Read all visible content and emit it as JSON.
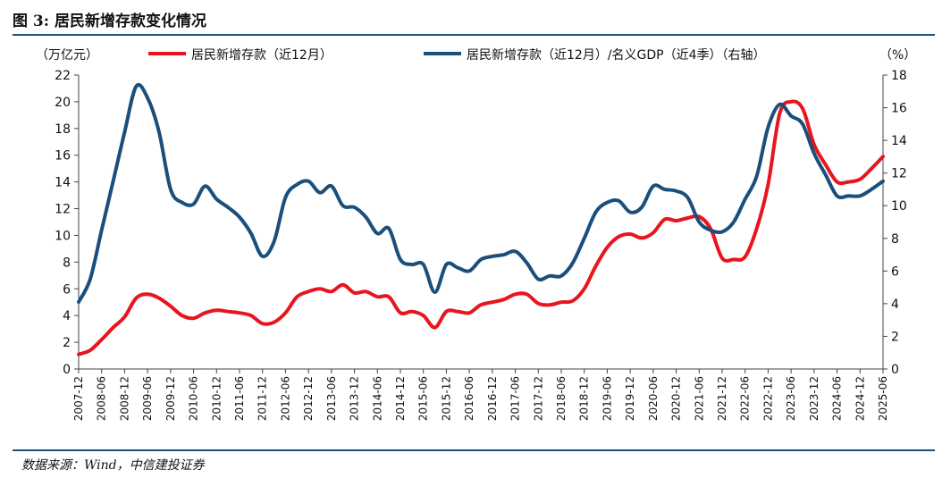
{
  "figure": {
    "title": "图 3: 居民新增存款变化情况",
    "source": "数据来源：Wind，中信建投证券"
  },
  "chart_data": {
    "type": "line",
    "ylabel_left": "（万亿元）",
    "ylabel_right": "（%）",
    "ylim_left": [
      0,
      22
    ],
    "yticks_left": [
      0,
      2,
      4,
      6,
      8,
      10,
      12,
      14,
      16,
      18,
      20,
      22
    ],
    "ylim_right": [
      0,
      18
    ],
    "yticks_right": [
      0,
      2,
      4,
      6,
      8,
      10,
      12,
      14,
      16,
      18
    ],
    "x_range": [
      "2007-12",
      "2025-06"
    ],
    "x_tick_labels": [
      "2007-12",
      "2008-06",
      "2008-12",
      "2009-06",
      "2009-12",
      "2010-06",
      "2010-12",
      "2011-06",
      "2011-12",
      "2012-06",
      "2012-12",
      "2013-06",
      "2013-12",
      "2014-06",
      "2014-12",
      "2015-06",
      "2015-12",
      "2016-06",
      "2016-12",
      "2017-06",
      "2017-12",
      "2018-06",
      "2018-12",
      "2019-06",
      "2019-12",
      "2020-06",
      "2020-12",
      "2021-06",
      "2021-12",
      "2022-06",
      "2022-12",
      "2023-06",
      "2023-12",
      "2024-06",
      "2024-12",
      "2025-06"
    ],
    "legend_position": "top",
    "grid": false,
    "colors": {
      "series1": "#e8141e",
      "series2": "#1b4f7b"
    },
    "series": [
      {
        "name": "居民新增存款（近12月）",
        "axis": "left",
        "points": [
          [
            "2007-12",
            1.1
          ],
          [
            "2008-03",
            1.4
          ],
          [
            "2008-06",
            2.2
          ],
          [
            "2008-09",
            3.1
          ],
          [
            "2008-12",
            3.9
          ],
          [
            "2009-03",
            5.3
          ],
          [
            "2009-06",
            5.6
          ],
          [
            "2009-09",
            5.3
          ],
          [
            "2009-12",
            4.7
          ],
          [
            "2010-03",
            4.0
          ],
          [
            "2010-06",
            3.8
          ],
          [
            "2010-09",
            4.2
          ],
          [
            "2010-12",
            4.4
          ],
          [
            "2011-03",
            4.3
          ],
          [
            "2011-06",
            4.2
          ],
          [
            "2011-09",
            4.0
          ],
          [
            "2011-12",
            3.4
          ],
          [
            "2012-03",
            3.5
          ],
          [
            "2012-06",
            4.2
          ],
          [
            "2012-09",
            5.4
          ],
          [
            "2012-12",
            5.8
          ],
          [
            "2013-03",
            6.0
          ],
          [
            "2013-06",
            5.8
          ],
          [
            "2013-09",
            6.3
          ],
          [
            "2013-12",
            5.7
          ],
          [
            "2014-03",
            5.8
          ],
          [
            "2014-06",
            5.4
          ],
          [
            "2014-09",
            5.4
          ],
          [
            "2014-12",
            4.2
          ],
          [
            "2015-03",
            4.3
          ],
          [
            "2015-06",
            4.0
          ],
          [
            "2015-09",
            3.1
          ],
          [
            "2015-12",
            4.3
          ],
          [
            "2016-03",
            4.3
          ],
          [
            "2016-06",
            4.2
          ],
          [
            "2016-09",
            4.8
          ],
          [
            "2016-12",
            5.0
          ],
          [
            "2017-03",
            5.2
          ],
          [
            "2017-06",
            5.6
          ],
          [
            "2017-09",
            5.6
          ],
          [
            "2017-12",
            4.9
          ],
          [
            "2018-03",
            4.8
          ],
          [
            "2018-06",
            5.0
          ],
          [
            "2018-09",
            5.1
          ],
          [
            "2018-12",
            6.0
          ],
          [
            "2019-03",
            7.7
          ],
          [
            "2019-06",
            9.1
          ],
          [
            "2019-09",
            9.9
          ],
          [
            "2019-12",
            10.1
          ],
          [
            "2020-03",
            9.8
          ],
          [
            "2020-06",
            10.2
          ],
          [
            "2020-09",
            11.2
          ],
          [
            "2020-12",
            11.1
          ],
          [
            "2021-03",
            11.3
          ],
          [
            "2021-06",
            11.4
          ],
          [
            "2021-09",
            10.5
          ],
          [
            "2021-12",
            8.3
          ],
          [
            "2022-03",
            8.2
          ],
          [
            "2022-06",
            8.4
          ],
          [
            "2022-09",
            10.5
          ],
          [
            "2022-12",
            13.8
          ],
          [
            "2023-03",
            19.1
          ],
          [
            "2023-06",
            20.0
          ],
          [
            "2023-09",
            19.5
          ],
          [
            "2023-12",
            16.8
          ],
          [
            "2024-03",
            15.3
          ],
          [
            "2024-06",
            14.0
          ],
          [
            "2024-09",
            14.0
          ],
          [
            "2024-12",
            14.2
          ],
          [
            "2025-03",
            15.0
          ],
          [
            "2025-06",
            15.9
          ]
        ]
      },
      {
        "name": "居民新增存款（近12月）/名义GDP（近4季）（右轴）",
        "axis": "right",
        "points": [
          [
            "2007-12",
            4.1
          ],
          [
            "2008-03",
            5.5
          ],
          [
            "2008-06",
            8.5
          ],
          [
            "2008-09",
            11.5
          ],
          [
            "2008-12",
            14.5
          ],
          [
            "2009-03",
            17.3
          ],
          [
            "2009-06",
            16.6
          ],
          [
            "2009-09",
            14.5
          ],
          [
            "2009-12",
            11.0
          ],
          [
            "2010-03",
            10.2
          ],
          [
            "2010-06",
            10.1
          ],
          [
            "2010-09",
            11.2
          ],
          [
            "2010-12",
            10.4
          ],
          [
            "2011-03",
            9.9
          ],
          [
            "2011-06",
            9.3
          ],
          [
            "2011-09",
            8.3
          ],
          [
            "2011-12",
            6.9
          ],
          [
            "2012-03",
            7.8
          ],
          [
            "2012-06",
            10.5
          ],
          [
            "2012-09",
            11.3
          ],
          [
            "2012-12",
            11.5
          ],
          [
            "2013-03",
            10.8
          ],
          [
            "2013-06",
            11.2
          ],
          [
            "2013-09",
            10.0
          ],
          [
            "2013-12",
            9.9
          ],
          [
            "2014-03",
            9.3
          ],
          [
            "2014-06",
            8.3
          ],
          [
            "2014-09",
            8.6
          ],
          [
            "2014-12",
            6.7
          ],
          [
            "2015-03",
            6.4
          ],
          [
            "2015-06",
            6.4
          ],
          [
            "2015-09",
            4.7
          ],
          [
            "2015-12",
            6.4
          ],
          [
            "2016-03",
            6.2
          ],
          [
            "2016-06",
            6.0
          ],
          [
            "2016-09",
            6.7
          ],
          [
            "2016-12",
            6.9
          ],
          [
            "2017-03",
            7.0
          ],
          [
            "2017-06",
            7.2
          ],
          [
            "2017-09",
            6.5
          ],
          [
            "2017-12",
            5.5
          ],
          [
            "2018-03",
            5.7
          ],
          [
            "2018-06",
            5.7
          ],
          [
            "2018-09",
            6.5
          ],
          [
            "2018-12",
            8.0
          ],
          [
            "2019-03",
            9.6
          ],
          [
            "2019-06",
            10.2
          ],
          [
            "2019-09",
            10.3
          ],
          [
            "2019-12",
            9.6
          ],
          [
            "2020-03",
            9.9
          ],
          [
            "2020-06",
            11.2
          ],
          [
            "2020-09",
            11.0
          ],
          [
            "2020-12",
            10.9
          ],
          [
            "2021-03",
            10.5
          ],
          [
            "2021-06",
            9.0
          ],
          [
            "2021-09",
            8.5
          ],
          [
            "2021-12",
            8.4
          ],
          [
            "2022-03",
            9.0
          ],
          [
            "2022-06",
            10.4
          ],
          [
            "2022-09",
            11.8
          ],
          [
            "2022-12",
            14.8
          ],
          [
            "2023-03",
            16.2
          ],
          [
            "2023-06",
            15.5
          ],
          [
            "2023-09",
            15.0
          ],
          [
            "2023-12",
            13.2
          ],
          [
            "2024-03",
            11.9
          ],
          [
            "2024-06",
            10.6
          ],
          [
            "2024-09",
            10.6
          ],
          [
            "2024-12",
            10.6
          ],
          [
            "2025-03",
            11.0
          ],
          [
            "2025-06",
            11.5
          ]
        ]
      }
    ]
  }
}
